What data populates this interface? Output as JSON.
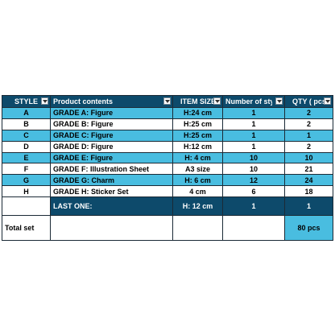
{
  "columns": [
    {
      "label": "STYLE",
      "filter": true
    },
    {
      "label": "Product contents",
      "filter": true
    },
    {
      "label": "ITEM SIZE",
      "filter": true
    },
    {
      "label": "Number of styl",
      "filter": true
    },
    {
      "label": "QTY  ( pcs",
      "filter": true
    }
  ],
  "rows": [
    {
      "style": "A",
      "contents": "GRADE A: Figure",
      "size": "H:24 cm",
      "styles": "1",
      "qty": "2"
    },
    {
      "style": "B",
      "contents": "GRADE B: Figure",
      "size": "H:25 cm",
      "styles": "1",
      "qty": "2"
    },
    {
      "style": "C",
      "contents": "GRADE C: Figure",
      "size": "H:25 cm",
      "styles": "1",
      "qty": "1"
    },
    {
      "style": "D",
      "contents": "GRADE D: Figure",
      "size": "H:12 cm",
      "styles": "1",
      "qty": "2"
    },
    {
      "style": "E",
      "contents": "GRADE E: Figure",
      "size": "H: 4 cm",
      "styles": "10",
      "qty": "10"
    },
    {
      "style": "F",
      "contents": "GRADE F: Illustration Sheet",
      "size": "A3 size",
      "styles": "10",
      "qty": "21"
    },
    {
      "style": "G",
      "contents": "GRADE G: Charm",
      "size": "H: 6 cm",
      "styles": "12",
      "qty": "24"
    },
    {
      "style": "H",
      "contents": "GRADE H: Sticker Set",
      "size": "4 cm",
      "styles": "6",
      "qty": "18"
    }
  ],
  "last_row": {
    "contents": "LAST ONE:",
    "size": "H: 12 cm",
    "styles": "1",
    "qty": "1"
  },
  "total": {
    "label": "Total  set",
    "qty": "80 pcs"
  },
  "colors": {
    "header": "#0d4a6b",
    "stripe": "#49bde0"
  }
}
